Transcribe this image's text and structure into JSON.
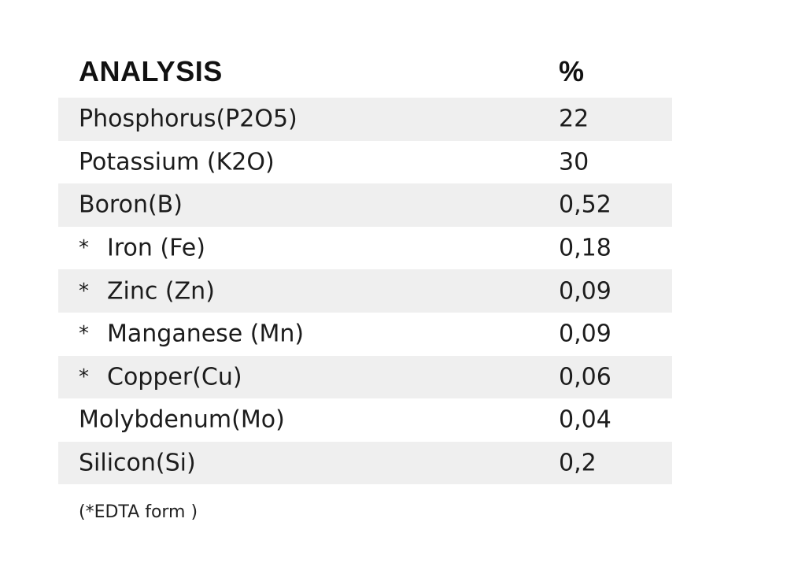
{
  "table": {
    "header": {
      "label": "ANALYSIS",
      "value": "%"
    },
    "rows": [
      {
        "prefix": "",
        "label": "Phosphorus(P2O5)",
        "value": "22"
      },
      {
        "prefix": "",
        "label": "Potassium (K2O)",
        "value": "30"
      },
      {
        "prefix": "",
        "label": "Boron(B)",
        "value": "0,52"
      },
      {
        "prefix": "*",
        "label": "Iron (Fe)",
        "value": "0,18"
      },
      {
        "prefix": "*",
        "label": "Zinc (Zn)",
        "value": "0,09"
      },
      {
        "prefix": "*",
        "label": "Manganese (Mn)",
        "value": "0,09"
      },
      {
        "prefix": "*",
        "label": "Copper(Cu)",
        "value": "0,06"
      },
      {
        "prefix": "",
        "label": "Molybdenum(Mo)",
        "value": "0,04"
      },
      {
        "prefix": "",
        "label": "Silicon(Si)",
        "value": "0,2"
      }
    ]
  },
  "footnote": "(*EDTA form )",
  "colors": {
    "shaded_row": "#efefef",
    "text": "#1c1c1c",
    "background": "#ffffff"
  }
}
